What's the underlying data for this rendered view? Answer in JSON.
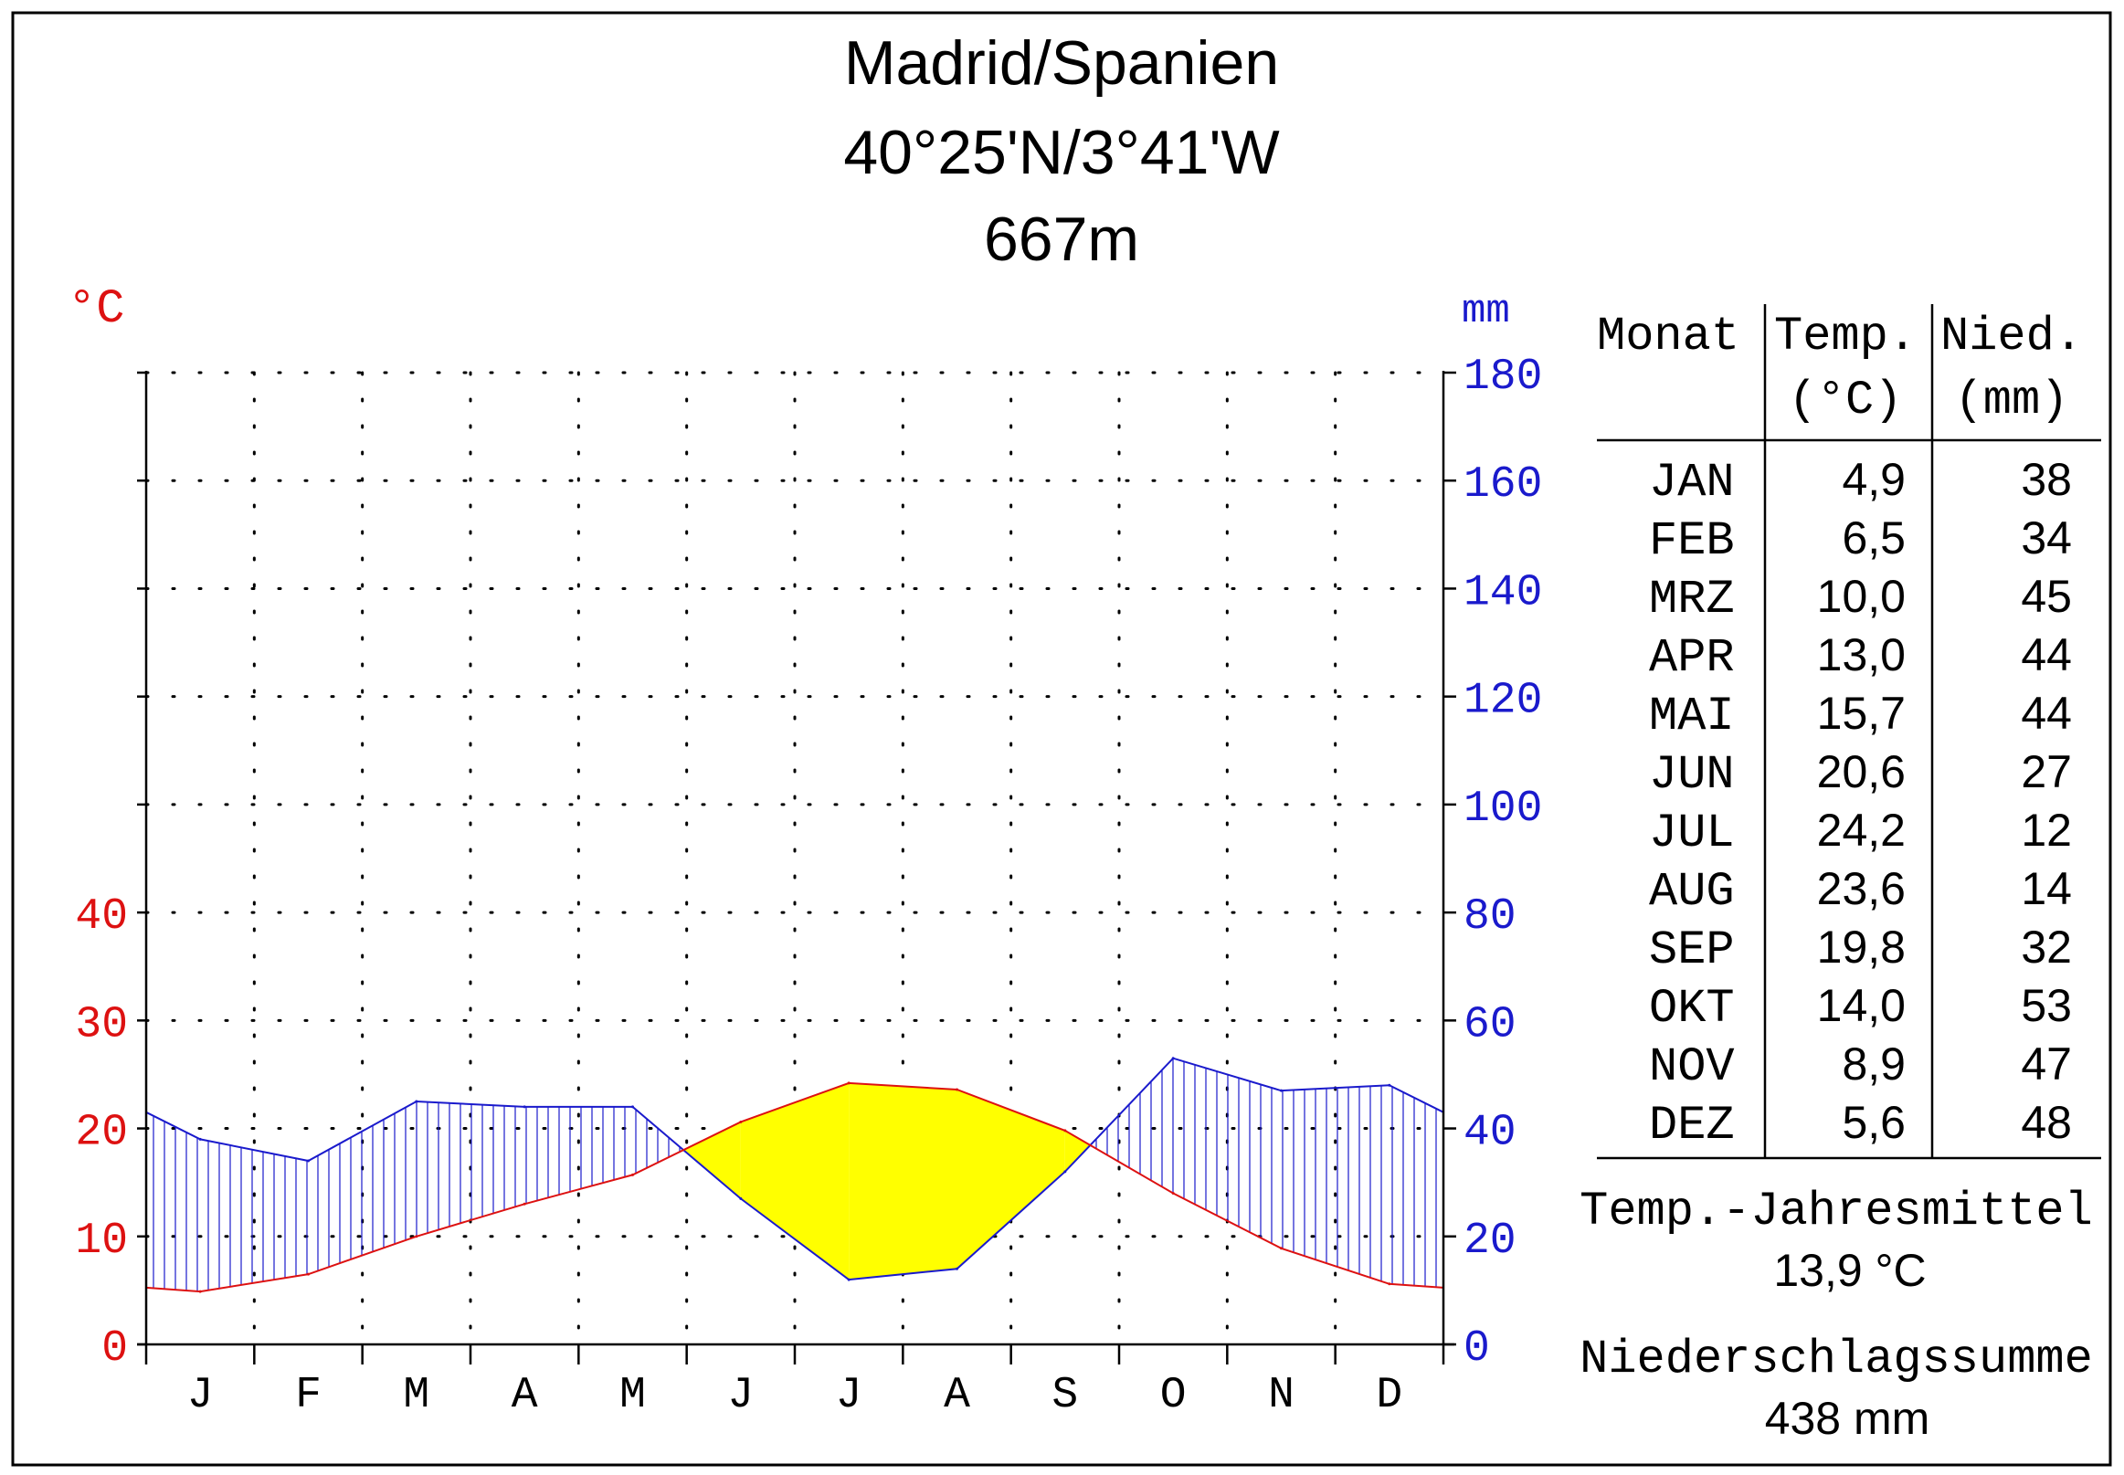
{
  "header": {
    "title": "Madrid/Spanien",
    "coords": "40°25'N/3°41'W",
    "elevation": "667m"
  },
  "colors": {
    "temperature": "#dd1111",
    "precipitation": "#1a1acc",
    "dry_season": "#ffff00",
    "frame": "#000000"
  },
  "chart_data": {
    "type": "line",
    "months": [
      "J",
      "F",
      "M",
      "A",
      "M",
      "J",
      "J",
      "A",
      "S",
      "O",
      "N",
      "D"
    ],
    "temperature": {
      "unit": "°C",
      "values": [
        4.9,
        6.5,
        10.0,
        13.0,
        15.7,
        20.6,
        24.2,
        23.6,
        19.8,
        14.0,
        8.9,
        5.6
      ],
      "ticks": [
        "0",
        "10",
        "20",
        "30",
        "40"
      ],
      "ylim": [
        0,
        90
      ]
    },
    "precipitation": {
      "unit": "mm",
      "values": [
        38,
        34,
        45,
        44,
        44,
        27,
        12,
        14,
        32,
        53,
        47,
        48
      ],
      "ticks": [
        "0",
        "20",
        "40",
        "60",
        "80",
        "100",
        "120",
        "140",
        "160",
        "180"
      ],
      "ylim": [
        0,
        180
      ]
    },
    "grid": true
  },
  "table": {
    "headers": {
      "month": "Monat",
      "temp_line1": "Temp.",
      "temp_line2": "(°C)",
      "prec_line1": "Nied.",
      "prec_line2": "(mm)"
    },
    "rows": [
      {
        "month": "JAN",
        "temp": "4,9",
        "prec": "38"
      },
      {
        "month": "FEB",
        "temp": "6,5",
        "prec": "34"
      },
      {
        "month": "MRZ",
        "temp": "10,0",
        "prec": "45"
      },
      {
        "month": "APR",
        "temp": "13,0",
        "prec": "44"
      },
      {
        "month": "MAI",
        "temp": "15,7",
        "prec": "44"
      },
      {
        "month": "JUN",
        "temp": "20,6",
        "prec": "27"
      },
      {
        "month": "JUL",
        "temp": "24,2",
        "prec": "12"
      },
      {
        "month": "AUG",
        "temp": "23,6",
        "prec": "14"
      },
      {
        "month": "SEP",
        "temp": "19,8",
        "prec": "32"
      },
      {
        "month": "OKT",
        "temp": "14,0",
        "prec": "53"
      },
      {
        "month": "NOV",
        "temp": "8,9",
        "prec": "47"
      },
      {
        "month": "DEZ",
        "temp": "5,6",
        "prec": "48"
      }
    ]
  },
  "summary": {
    "temp_label": "Temp.-Jahresmittel",
    "temp_value": "13,9 °C",
    "prec_label": "Niederschlagssumme",
    "prec_value": "438 mm"
  }
}
